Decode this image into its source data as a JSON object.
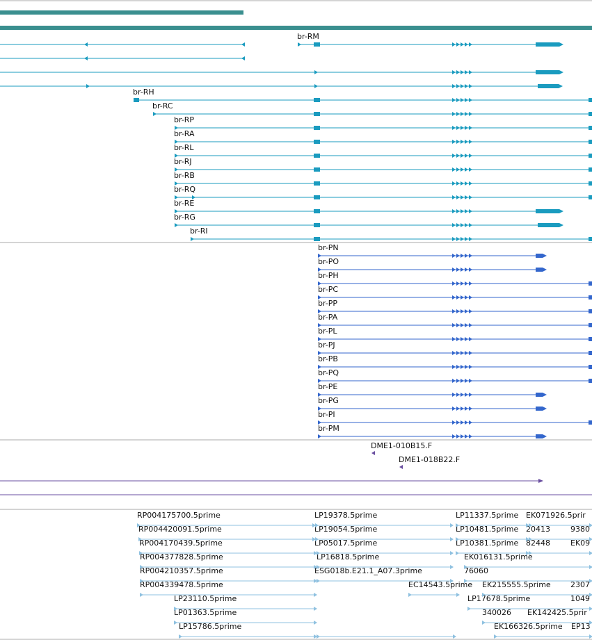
{
  "colors": {
    "gene_top": "#3a8f8f",
    "transcript_teal": "#1a9bbf",
    "protein_blue": "#3366cc",
    "cdna_purple": "#6a4fa0",
    "est_light_blue": "#8fc1e0",
    "separator": "#a8a8a8",
    "label_text": "#111111"
  },
  "transcripts": {
    "unlabeled_rows": 4,
    "labels": [
      "br-RM",
      "br-RH",
      "br-RC",
      "br-RP",
      "br-RA",
      "br-RL",
      "br-RJ",
      "br-RB",
      "br-RQ",
      "br-RE",
      "br-RG",
      "br-RI"
    ]
  },
  "proteins": {
    "labels": [
      "br-PN",
      "br-PO",
      "br-PH",
      "br-PC",
      "br-PP",
      "br-PA",
      "br-PL",
      "br-PJ",
      "br-PB",
      "br-PQ",
      "br-PE",
      "br-PG",
      "br-PI",
      "br-PM"
    ]
  },
  "cdna_clones": {
    "labels": [
      "DME1-010B15.F",
      "DME1-018B22.F"
    ]
  },
  "est_reads": {
    "labels": [
      "RP004175700.5prime",
      "LP19378.5prime",
      "LP11337.5prime",
      "EK071926.5prir",
      "RP004420091.5prime",
      "LP19054.5prime",
      "LP10481.5prime",
      "20413",
      "9380",
      "RP004170439.5prime",
      "LP05017.5prime",
      "LP10381.5prime",
      "82448",
      "EK09",
      "RP004377828.5prime",
      "LP16818.5prime",
      "EK016131.5prime",
      "RP004210357.5prime",
      "ESG018b.E21.1_A07.3prime",
      "76060",
      "RP004339478.5prime",
      "EC14543.5prime",
      "EK215555.5prime",
      "2307",
      "LP23110.5prime",
      "LP17678.5prime",
      "1049",
      "LP01363.5prime",
      "340026",
      "EK142425.5prir",
      "LP15786.5prime",
      "EK166326.5prime",
      "EP13"
    ]
  }
}
